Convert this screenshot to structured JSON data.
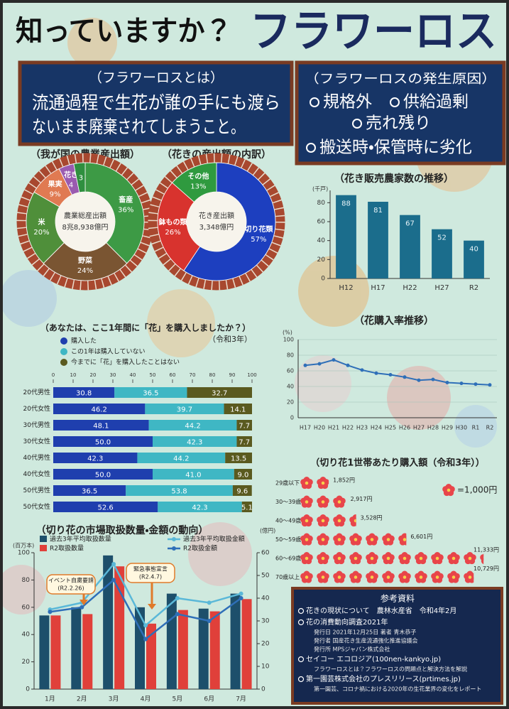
{
  "header": {
    "title": "知っていますか？",
    "title_main": "フラワーロス"
  },
  "definition": {
    "heading": "（フラワーロスとは）",
    "lines": [
      "流通過程で生花が誰の手にも渡ら",
      "ないまま廃棄されてしまうこと。"
    ]
  },
  "causes": {
    "heading": "（フラワーロスの発生原因）",
    "items": [
      "規格外",
      "供給過剰",
      "売れ残り",
      "搬送時・保管時に劣化"
    ]
  },
  "chart_data": [
    {
      "type": "donut",
      "title": "（我が国の農業産出額）",
      "center_label": "農業総産出額",
      "center_value": "8兆8,938億円",
      "categories": [
        "畜産",
        "野菜",
        "米",
        "果実",
        "花き",
        null
      ],
      "values": [
        36,
        24,
        20,
        9,
        4,
        3
      ],
      "value_labels": [
        "36%",
        "24%",
        "20%",
        "9%",
        "4",
        "3"
      ],
      "colors": [
        "#3d9a45",
        "#7a5532",
        "#4f8f3a",
        "#e07a52",
        "#9a5bb0",
        "#2f8f3f"
      ]
    },
    {
      "type": "donut",
      "title": "（花きの産出額の内訳）",
      "center_label": "花き産出額",
      "center_value": "3,348億円",
      "categories": [
        "切り花類",
        "鉢もの類",
        "その他"
      ],
      "values": [
        57,
        26,
        13
      ],
      "value_labels": [
        "57%",
        "26%",
        "13%"
      ],
      "colors": [
        "#1d3fbf",
        "#d8332e",
        "#2f9a3f"
      ]
    },
    {
      "type": "bar",
      "title": "（花き販売農家数の推移）",
      "y_label": "(千戸)",
      "categories": [
        "H12",
        "H17",
        "H22",
        "H27",
        "R2"
      ],
      "values": [
        88,
        81,
        67,
        52,
        40
      ],
      "color": "#1b6d8c",
      "ylim": [
        0,
        90
      ],
      "yticks": [
        0,
        20,
        40,
        60,
        80
      ],
      "grid": false
    },
    {
      "type": "stacked_hbar",
      "title": "（あなたは、ここ1年間に「花」を購入しましたか？）",
      "subtitle": "（令和3年）",
      "categories": [
        "20代男性",
        "20代女性",
        "30代男性",
        "30代女性",
        "40代男性",
        "40代女性",
        "50代男性",
        "50代女性"
      ],
      "series": [
        {
          "name": "購入した",
          "color": "#1f3fae",
          "values": [
            30.8,
            46.2,
            48.1,
            50.0,
            42.3,
            50.0,
            36.5,
            52.6
          ],
          "value_labels": [
            "30.8",
            "46.2",
            "48.1",
            "50.0",
            "42.3",
            "50.0",
            "36.5",
            "52.6"
          ]
        },
        {
          "name": "この1年は購入していない",
          "color": "#3fb7c4",
          "values": [
            36.5,
            39.7,
            44.2,
            42.3,
            44.2,
            41.0,
            53.8,
            42.3
          ],
          "value_labels": [
            "36.5",
            "39.7",
            "44.2",
            "42.3",
            "44.2",
            "41.0",
            "53.8",
            "42.3"
          ]
        },
        {
          "name": "今までに「花」を購入したことはない",
          "color": "#5a5a1f",
          "values": [
            32.7,
            14.1,
            7.7,
            7.7,
            13.5,
            9.0,
            9.6,
            5.1
          ],
          "value_labels": [
            "32.7",
            "14.1",
            "7.7",
            "7.7",
            "13.5",
            "9.0",
            "9.6",
            "5.1"
          ]
        }
      ],
      "xlim": [
        0,
        100
      ],
      "xticks": [
        0,
        10,
        20,
        30,
        40,
        50,
        60,
        70,
        80,
        90,
        100
      ]
    },
    {
      "type": "line",
      "title": "（花購入率推移）",
      "y_label": "(%)",
      "categories": [
        "H17",
        "H20",
        "H21",
        "H22",
        "H23",
        "H24",
        "H25",
        "H26",
        "H27",
        "H28",
        "H29",
        "H30",
        "R1",
        "R2"
      ],
      "values": [
        67,
        69,
        74,
        67,
        61,
        57,
        55,
        52,
        48,
        49,
        45,
        44,
        43,
        42
      ],
      "color": "#2f6fb8",
      "ylim": [
        0,
        100
      ],
      "yticks": [
        0,
        20,
        40,
        60,
        80,
        100
      ],
      "grid": true
    },
    {
      "type": "pictogram",
      "title": "（切り花1世帯あたり購入額（令和3年））",
      "legend_unit": {
        "value": 1000,
        "label": "=1,000円"
      },
      "categories": [
        "29歳以下",
        "30〜39歳",
        "40〜49歳",
        "50〜59歳",
        "60〜69歳",
        "70歳以上"
      ],
      "values": [
        1852,
        2917,
        3528,
        6601,
        11333,
        10729
      ],
      "value_labels": [
        "1,852円",
        "2,917円",
        "3,528円",
        "6,601円",
        "11,333円",
        "10,729円"
      ],
      "color": "#e8454a"
    },
    {
      "type": "combo",
      "title": "（切り花の市場取扱数量・金額の動向）",
      "y_label": "(百万本)",
      "y2_label": "(億円)",
      "categories": [
        "1月",
        "2月",
        "3月",
        "4月",
        "5月",
        "6月",
        "7月"
      ],
      "series": [
        {
          "name": "過去3年平均取扱数量",
          "kind": "bar",
          "color": "#1d4f6b",
          "values": [
            54,
            60,
            98,
            60,
            70,
            59,
            70
          ]
        },
        {
          "name": "R2取扱数量",
          "kind": "bar",
          "color": "#e0403a",
          "values": [
            54,
            55,
            90,
            48,
            58,
            57,
            66
          ]
        },
        {
          "name": "過去3年平均取扱金額",
          "kind": "line",
          "axis": "y2",
          "color": "#5ab8d8",
          "values": [
            35,
            38,
            55,
            28,
            40,
            38,
            42
          ]
        },
        {
          "name": "R2取扱金額",
          "kind": "line",
          "axis": "y2",
          "color": "#2f6fb8",
          "values": [
            34,
            36,
            48,
            22,
            33,
            30,
            40
          ]
        }
      ],
      "ylim": [
        0,
        100
      ],
      "yticks": [
        0,
        20,
        40,
        60,
        80,
        100
      ],
      "y2lim": [
        0,
        60
      ],
      "y2ticks": [
        0,
        10,
        20,
        30,
        40,
        50,
        60
      ],
      "annotations": [
        {
          "text": "イベント自粛要請",
          "date": "(R2.2.26)"
        },
        {
          "text": "緊急事態宣言",
          "date": "(R2.4.7)"
        }
      ]
    }
  ],
  "references": {
    "heading": "参考資料",
    "items": [
      {
        "text": "花きの現状について　農林水産省　令和4年2月",
        "details": []
      },
      {
        "text": "花の消費動向調査2021年",
        "details": [
          "発行日 2021年12月25日 著者 青木恭子",
          "発行者 国産花き生産流通強化推進協議会",
          "発行所 MPSジャパン株式会社"
        ]
      },
      {
        "text": "セイコー エコロジア(100nen-kankyo.jp)",
        "details": [
          "フラワーロスとは？フラワーロスの問題点と解決方法を解説"
        ]
      },
      {
        "text": "第一園芸株式会社のプレスリリース(prtimes.jp)",
        "details": [
          "第一園芸、コロナ禍における2020年の生花業界の変化をレポート"
        ]
      }
    ]
  }
}
